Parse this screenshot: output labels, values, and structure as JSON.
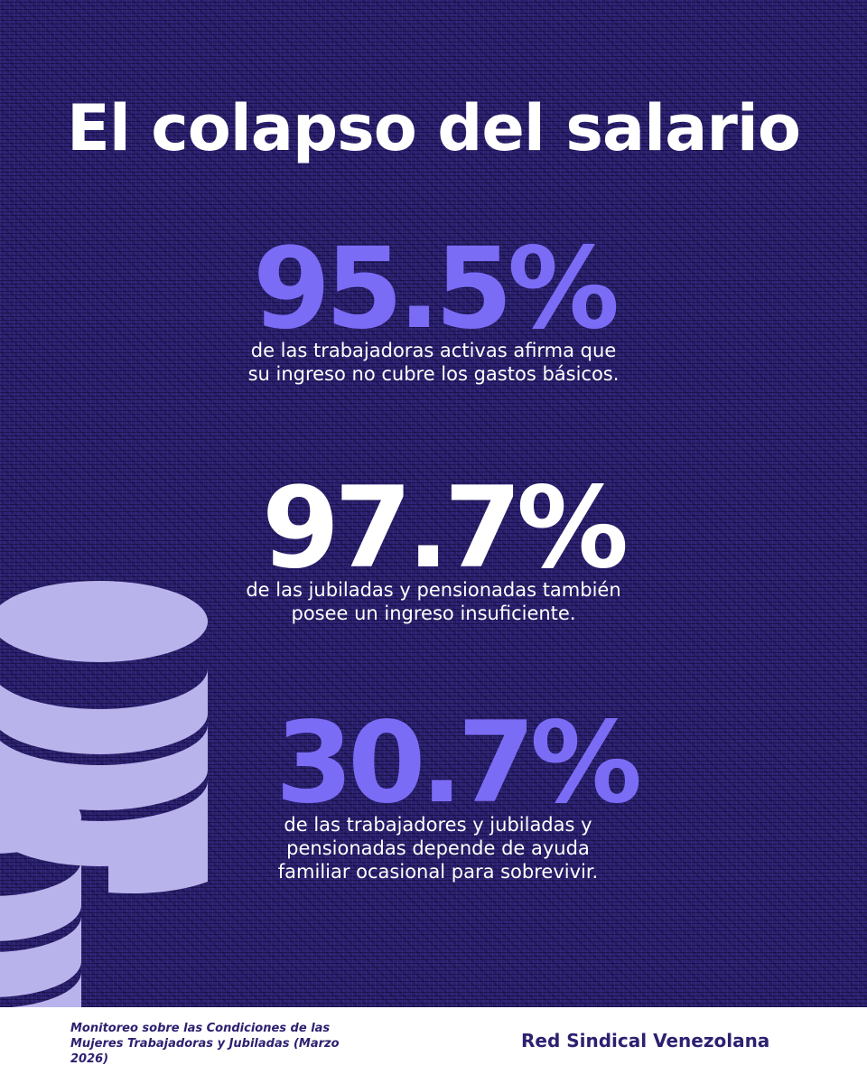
{
  "title": "El colapso del salario",
  "stats": [
    {
      "value": "95.5%",
      "description": "de las trabajadoras activas afirma que su ingreso no cubre los gastos básicos."
    },
    {
      "value": "97.7%",
      "description": "de las jubiladas y pensionadas también posee un ingreso insuficiente."
    },
    {
      "value": "30.7%",
      "description": "de las trabajadores y jubiladas y pensionadas depende de ayuda familiar ocasional para sobrevivir."
    }
  ],
  "footer": {
    "source": "Monitoreo sobre las Condiciones de las Mujeres Trabajadoras y Jubiladas (Marzo 2026)",
    "organization": "Red Sindical Venezolana"
  },
  "colors": {
    "background": "#2c2170",
    "accent": "#7b6cf6",
    "coins": "#b9b3ec",
    "text": "#ffffff"
  },
  "icons": [
    "coin-stack-icon"
  ]
}
